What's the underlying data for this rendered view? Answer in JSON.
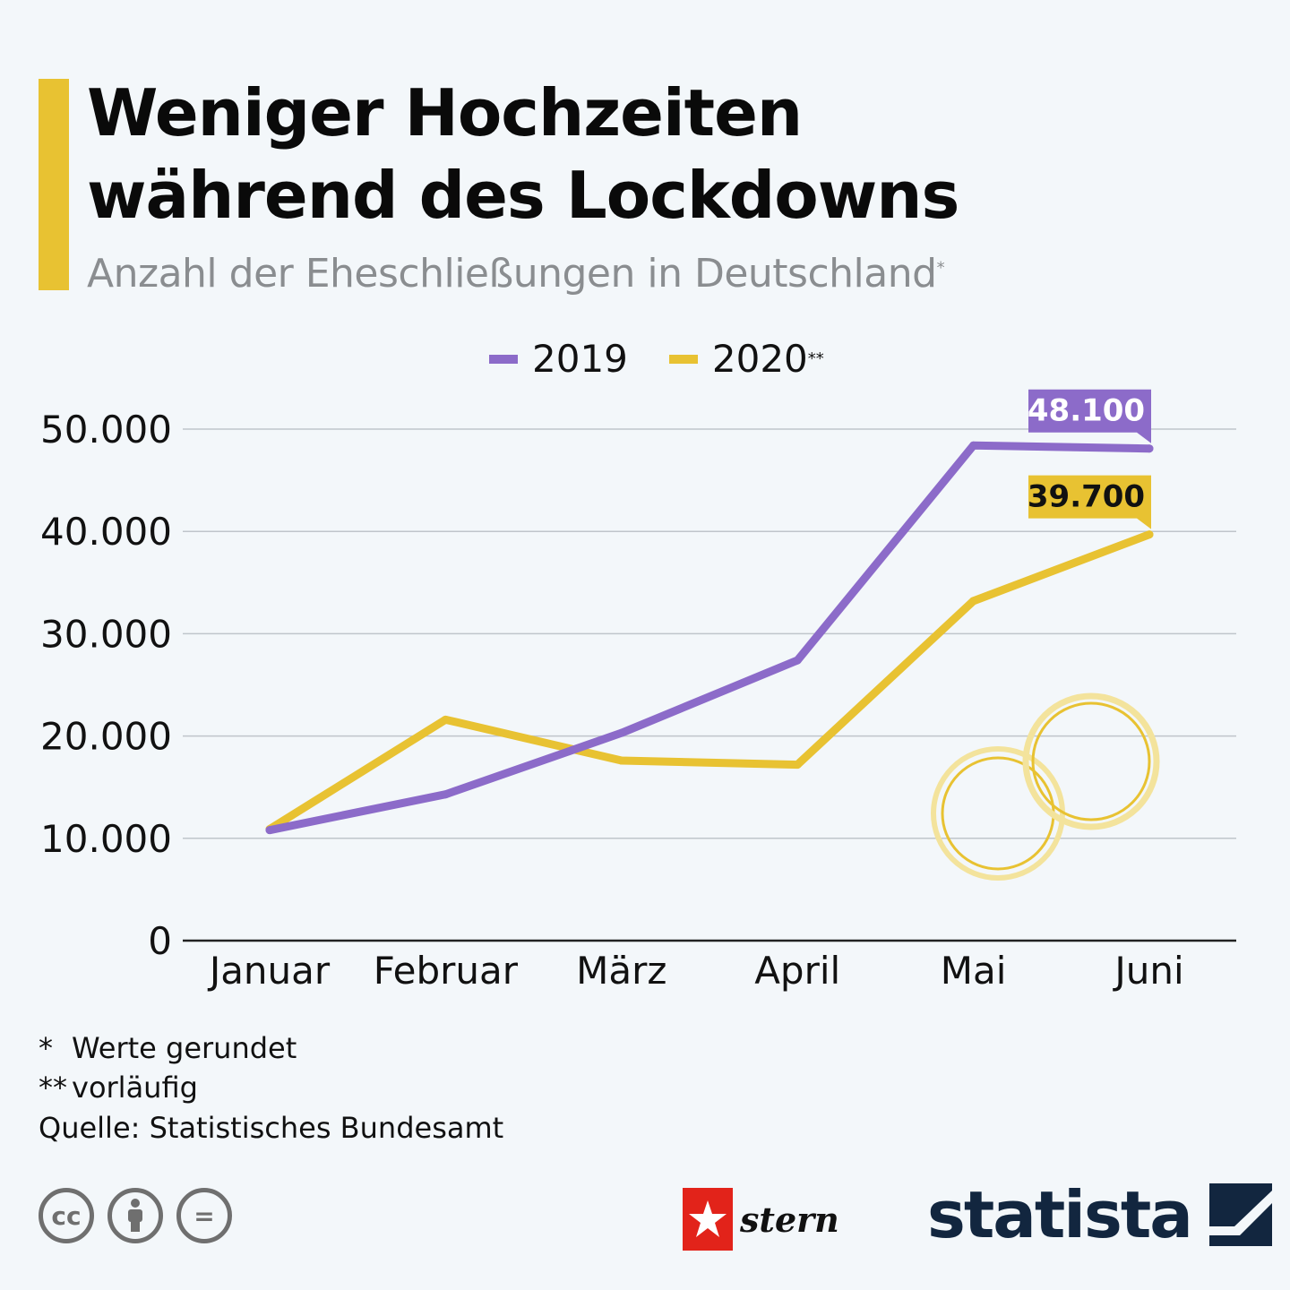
{
  "header": {
    "title_line1": "Weniger Hochzeiten",
    "title_line2": "während des Lockdowns",
    "subtitle": "Anzahl der Eheschließungen in Deutschland",
    "subtitle_marker": "*"
  },
  "legend": [
    {
      "label": "2019",
      "marker": "",
      "color": "#8c6bc9"
    },
    {
      "label": "2020",
      "marker": "**",
      "color": "#e8c232"
    }
  ],
  "chart_data": {
    "type": "line",
    "title": "Weniger Hochzeiten während des Lockdowns",
    "subtitle": "Anzahl der Eheschließungen in Deutschland",
    "categories": [
      "Januar",
      "Februar",
      "März",
      "April",
      "Mai",
      "Juni"
    ],
    "series": [
      {
        "name": "2019",
        "color": "#8c6bc9",
        "values": [
          10800,
          14300,
          20300,
          27400,
          48400,
          48100
        ]
      },
      {
        "name": "2020",
        "color": "#e8c232",
        "values": [
          10900,
          21600,
          17600,
          17200,
          33200,
          39700
        ]
      }
    ],
    "yticks": [
      0,
      10000,
      20000,
      30000,
      40000,
      50000
    ],
    "ytick_labels": [
      "0",
      "10.000",
      "20.000",
      "30.000",
      "40.000",
      "50.000"
    ],
    "ylim": [
      0,
      50000
    ],
    "grid": true,
    "xlabel": "",
    "ylabel": "",
    "data_labels": [
      {
        "series": "2019",
        "category": "Juni",
        "text": "48.100"
      },
      {
        "series": "2020",
        "category": "Juni",
        "text": "39.700"
      }
    ]
  },
  "footer": {
    "note1_marker": "*",
    "note1": "Werte gerundet",
    "note2_marker": "**",
    "note2": "vorläufig",
    "source": "Quelle: Statistisches Bundesamt",
    "stern": "stern",
    "statista": "statista",
    "cc_icons": [
      "cc",
      "i",
      "="
    ]
  }
}
